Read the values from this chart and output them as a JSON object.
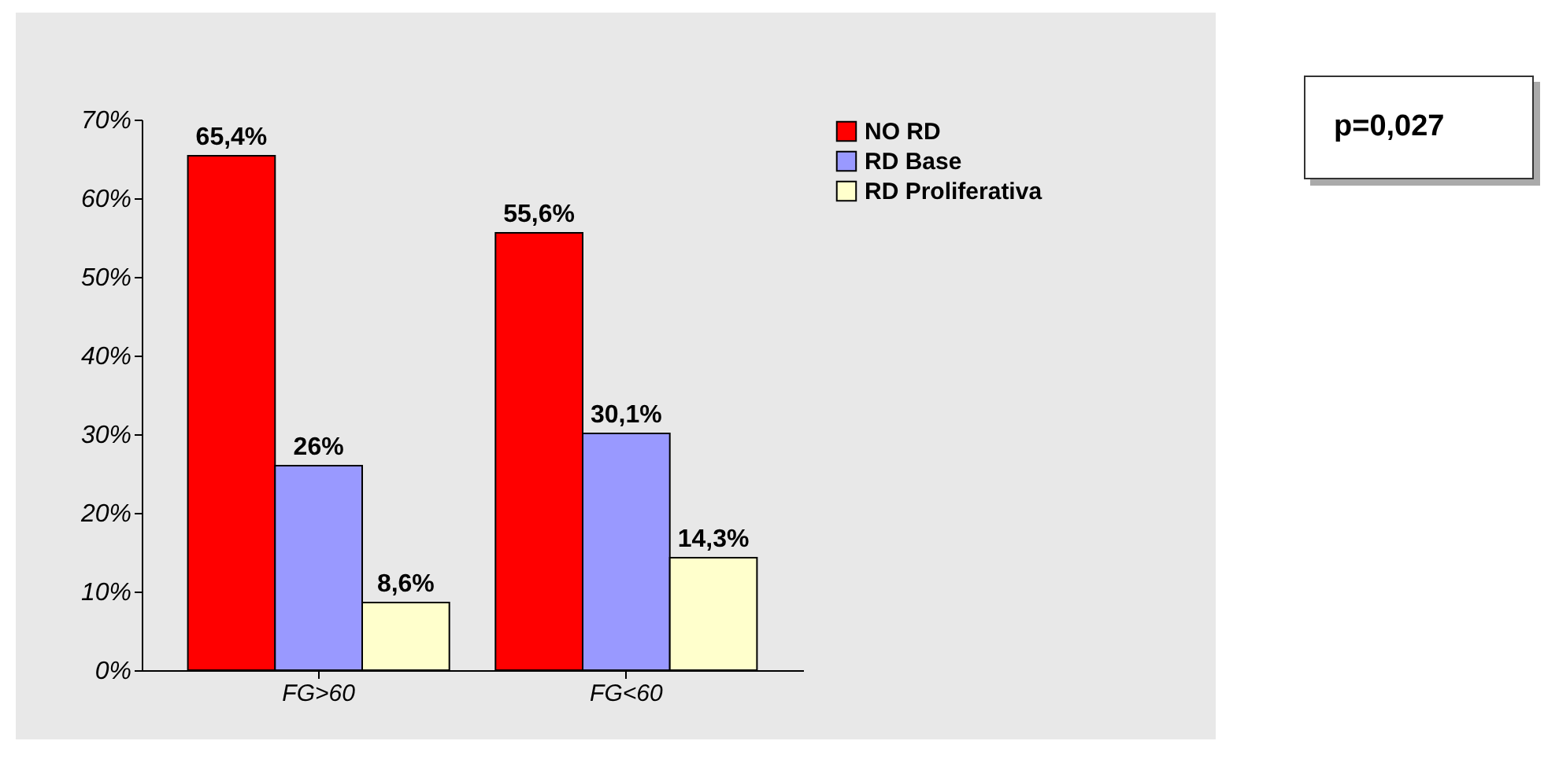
{
  "chart_data": {
    "type": "bar",
    "categories": [
      "FG>60",
      "FG<60"
    ],
    "series": [
      {
        "name": "NO RD",
        "color": "#ff0000",
        "values": [
          65.4,
          55.6
        ],
        "value_labels": [
          "65,4%",
          "55,6%"
        ]
      },
      {
        "name": "RD Base",
        "color": "#9999ff",
        "values": [
          26,
          30.1
        ],
        "value_labels": [
          "26%",
          "30,1%"
        ]
      },
      {
        "name": "RD Proliferativa",
        "color": "#ffffcc",
        "values": [
          8.6,
          14.3
        ],
        "value_labels": [
          "8,6%",
          "14,3%"
        ]
      }
    ],
    "ylim": [
      0,
      70
    ],
    "yticks": [
      {
        "value": 0,
        "label": "0%"
      },
      {
        "value": 10,
        "label": "10%"
      },
      {
        "value": 20,
        "label": "20%"
      },
      {
        "value": 30,
        "label": "30%"
      },
      {
        "value": 40,
        "label": "40%"
      },
      {
        "value": 50,
        "label": "50%"
      },
      {
        "value": 60,
        "label": "60%"
      },
      {
        "value": 70,
        "label": "70%"
      }
    ],
    "legend": "right",
    "grid": false,
    "annotations": [
      "p=0,027"
    ]
  }
}
